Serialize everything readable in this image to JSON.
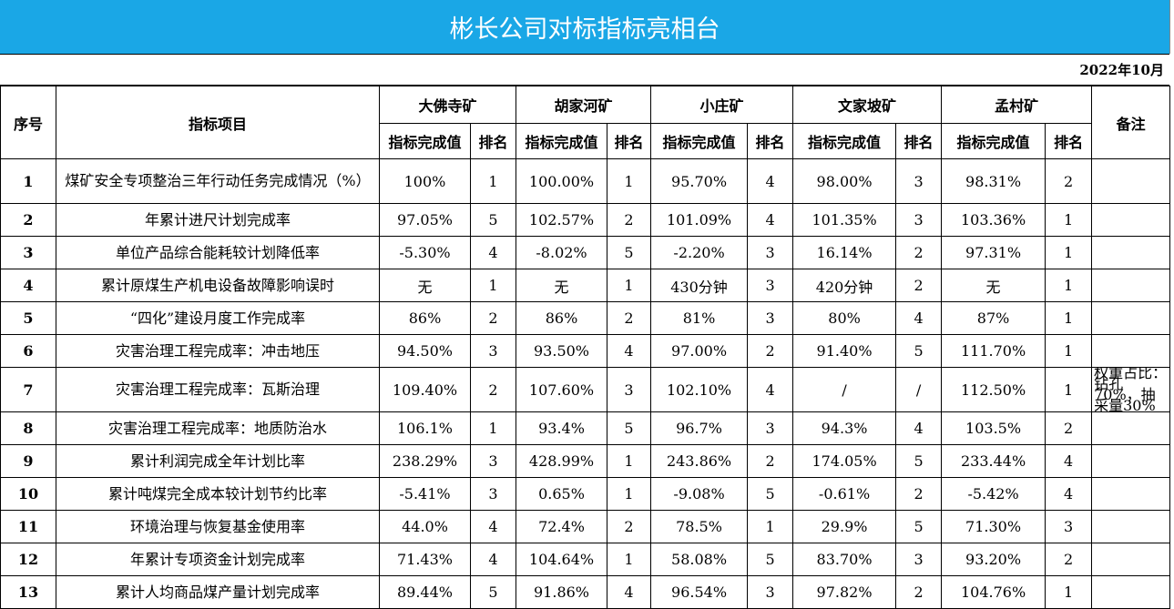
{
  "title": "彬长公司对标指标亮相台",
  "date": "2022年10月",
  "headers": {
    "index": "序号",
    "item": "指标项目",
    "note": "备注",
    "value": "指标完成值",
    "rank": "排名",
    "mines": [
      "大佛寺矿",
      "胡家河矿",
      "小庄矿",
      "文家坡矿",
      "孟村矿"
    ]
  },
  "rows": [
    {
      "no": "1",
      "item": "煤矿安全专项整治三年行动任务完成情况（%）",
      "cells": [
        "100%",
        "1",
        "100.00%",
        "1",
        "95.70%",
        "4",
        "98.00%",
        "3",
        "98.31%",
        "2"
      ],
      "note": ""
    },
    {
      "no": "2",
      "item": "年累计进尺计划完成率",
      "cells": [
        "97.05%",
        "5",
        "102.57%",
        "2",
        "101.09%",
        "4",
        "101.35%",
        "3",
        "103.36%",
        "1"
      ],
      "note": ""
    },
    {
      "no": "3",
      "item": "单位产品综合能耗较计划降低率",
      "cells": [
        "-5.30%",
        "4",
        "-8.02%",
        "5",
        "-2.20%",
        "3",
        "16.14%",
        "2",
        "97.31%",
        "1"
      ],
      "note": ""
    },
    {
      "no": "4",
      "item": "累计原煤生产机电设备故障影响误时",
      "cells": [
        "无",
        "1",
        "无",
        "1",
        "430分钟",
        "3",
        "420分钟",
        "2",
        "无",
        "1"
      ],
      "note": ""
    },
    {
      "no": "5",
      "item": "“四化”建设月度工作完成率",
      "cells": [
        "86%",
        "2",
        "86%",
        "2",
        "81%",
        "3",
        "80%",
        "4",
        "87%",
        "1"
      ],
      "note": ""
    },
    {
      "no": "6",
      "item": "灾害治理工程完成率：冲击地压",
      "cells": [
        "94.50%",
        "3",
        "93.50%",
        "4",
        "97.00%",
        "2",
        "91.40%",
        "5",
        "111.70%",
        "1"
      ],
      "note": ""
    },
    {
      "no": "7",
      "item": "灾害治理工程完成率：瓦斯治理",
      "cells": [
        "109.40%",
        "2",
        "107.60%",
        "3",
        "102.10%",
        "4",
        "/",
        "/",
        "112.50%",
        "1"
      ],
      "note": "权重占比：钻孔70%，抽采量30%"
    },
    {
      "no": "8",
      "item": "灾害治理工程完成率：地质防治水",
      "cells": [
        "106.1%",
        "1",
        "93.4%",
        "5",
        "96.7%",
        "3",
        "94.3%",
        "4",
        "103.5%",
        "2"
      ],
      "note": ""
    },
    {
      "no": "9",
      "item": "累计利润完成全年计划比率",
      "cells": [
        "238.29%",
        "3",
        "428.99%",
        "1",
        "243.86%",
        "2",
        "174.05%",
        "5",
        "233.44%",
        "4"
      ],
      "note": ""
    },
    {
      "no": "10",
      "item": "累计吨煤完全成本较计划节约比率",
      "cells": [
        "-5.41%",
        "3",
        "0.65%",
        "1",
        "-9.08%",
        "5",
        "-0.61%",
        "2",
        "-5.42%",
        "4"
      ],
      "note": ""
    },
    {
      "no": "11",
      "item": "环境治理与恢复基金使用率",
      "cells": [
        "44.0%",
        "4",
        "72.4%",
        "2",
        "78.5%",
        "1",
        "29.9%",
        "5",
        "71.30%",
        "3"
      ],
      "note": ""
    },
    {
      "no": "12",
      "item": "年累计专项资金计划完成率",
      "cells": [
        "71.43%",
        "4",
        "104.64%",
        "1",
        "58.08%",
        "5",
        "83.70%",
        "3",
        "93.20%",
        "2"
      ],
      "note": ""
    },
    {
      "no": "13",
      "item": "累计人均商品煤产量计划完成率",
      "cells": [
        "89.44%",
        "5",
        "91.86%",
        "4",
        "96.54%",
        "3",
        "97.82%",
        "2",
        "104.76%",
        "1"
      ],
      "note": ""
    }
  ]
}
